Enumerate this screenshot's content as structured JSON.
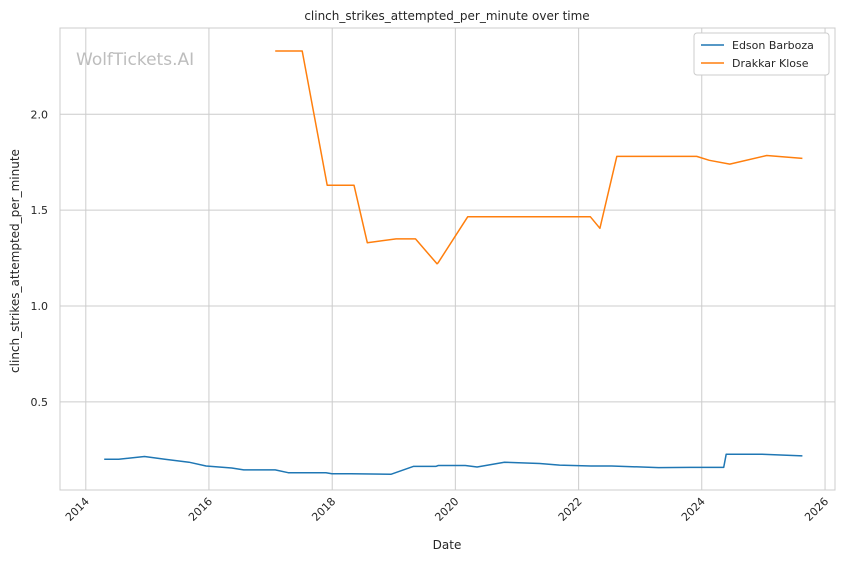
{
  "chart_data": {
    "type": "line",
    "title": "clinch_strikes_attempted_per_minute over time",
    "xlabel": "Date",
    "ylabel": "clinch_strikes_attempted_per_minute",
    "watermark": "WolfTickets.AI",
    "x_axis": "date",
    "xlim": [
      "2013-08-01",
      "2026-03-01"
    ],
    "ylim": [
      0.04,
      2.45
    ],
    "x_ticks": [
      "2014",
      "2016",
      "2018",
      "2020",
      "2022",
      "2024",
      "2026"
    ],
    "y_ticks": [
      "0.5",
      "1.0",
      "1.5",
      "2.0"
    ],
    "grid": true,
    "legend_position": "top-right",
    "series": [
      {
        "name": "Edson Barboza",
        "color": "#1f77b4",
        "points": [
          [
            "2014-04-20",
            0.2
          ],
          [
            "2014-07-15",
            0.2
          ],
          [
            "2014-12-15",
            0.215
          ],
          [
            "2015-04-15",
            0.2
          ],
          [
            "2015-09-05",
            0.185
          ],
          [
            "2015-12-15",
            0.165
          ],
          [
            "2016-05-15",
            0.155
          ],
          [
            "2016-07-25",
            0.145
          ],
          [
            "2017-01-28",
            0.145
          ],
          [
            "2017-04-15",
            0.13
          ],
          [
            "2017-11-25",
            0.13
          ],
          [
            "2017-12-30",
            0.125
          ],
          [
            "2018-04-21",
            0.125
          ],
          [
            "2018-12-15",
            0.122
          ],
          [
            "2019-04-27",
            0.163
          ],
          [
            "2019-09-07",
            0.163
          ],
          [
            "2019-09-22",
            0.168
          ],
          [
            "2020-02-29",
            0.168
          ],
          [
            "2020-05-09",
            0.16
          ],
          [
            "2020-10-18",
            0.185
          ],
          [
            "2021-05-15",
            0.178
          ],
          [
            "2021-09-10",
            0.17
          ],
          [
            "2022-03-15",
            0.165
          ],
          [
            "2022-07-15",
            0.165
          ],
          [
            "2023-04-20",
            0.157
          ],
          [
            "2023-10-25",
            0.158
          ],
          [
            "2024-05-10",
            0.158
          ],
          [
            "2024-05-25",
            0.227
          ],
          [
            "2024-12-15",
            0.227
          ],
          [
            "2025-08-20",
            0.218
          ]
        ]
      },
      {
        "name": "Drakkar Klose",
        "color": "#ff7f0e",
        "points": [
          [
            "2017-01-28",
            2.33
          ],
          [
            "2017-07-07",
            2.33
          ],
          [
            "2017-12-02",
            1.63
          ],
          [
            "2018-05-10",
            1.63
          ],
          [
            "2018-07-28",
            1.33
          ],
          [
            "2019-01-15",
            1.35
          ],
          [
            "2019-05-10",
            1.35
          ],
          [
            "2019-09-14",
            1.22
          ],
          [
            "2019-09-21",
            1.225
          ],
          [
            "2020-03-14",
            1.465
          ],
          [
            "2022-03-12",
            1.465
          ],
          [
            "2022-05-07",
            1.405
          ],
          [
            "2022-08-15",
            1.78
          ],
          [
            "2023-12-02",
            1.78
          ],
          [
            "2024-02-15",
            1.76
          ],
          [
            "2024-06-15",
            1.74
          ],
          [
            "2025-01-20",
            1.785
          ],
          [
            "2025-08-20",
            1.77
          ]
        ]
      }
    ]
  }
}
